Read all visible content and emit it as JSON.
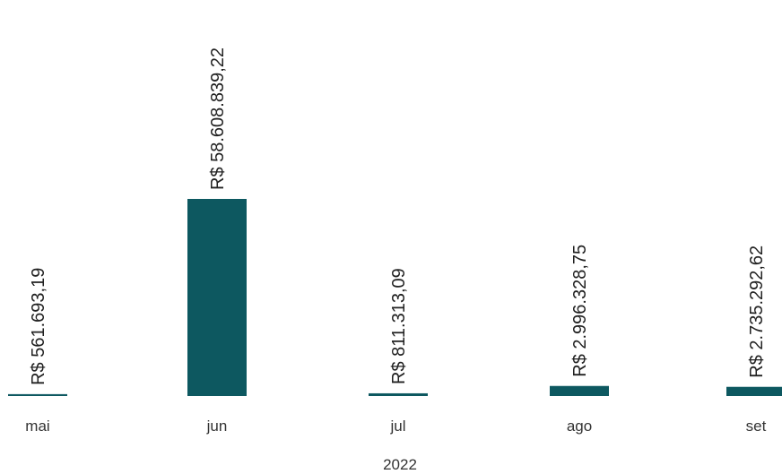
{
  "chart_data": {
    "type": "bar",
    "categories": [
      "mai",
      "jun",
      "jul",
      "ago",
      "set"
    ],
    "values": [
      561693.19,
      58608839.22,
      811313.09,
      2996328.75,
      2735292.62
    ],
    "data_labels": [
      "R$ 561.693,19",
      "R$ 58.608.839,22",
      "R$ 811.313,09",
      "R$ 2.996.328,75",
      "R$ 2.735.292,62"
    ],
    "group_label": "2022",
    "bar_color": "#0d5860",
    "ylim": [
      0,
      58608839.22
    ],
    "grid": false,
    "legend": "none"
  }
}
